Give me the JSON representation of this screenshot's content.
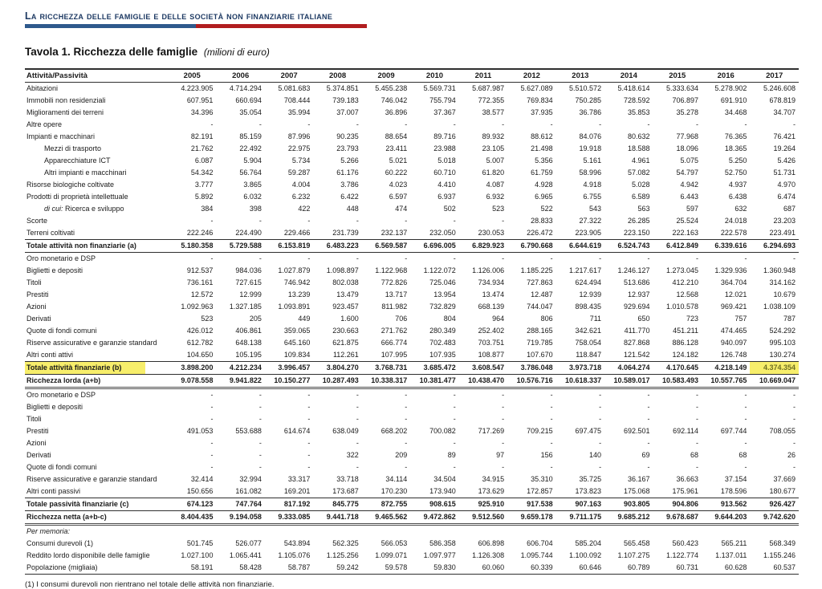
{
  "colors": {
    "title_navy": "#1e3a63",
    "bar_blue": "#2e598c",
    "bar_red": "#b11d1f",
    "highlight_yellow": "#f7ee6b",
    "highlight_text": "#6f6f23"
  },
  "page_header": {
    "title": "La ricchezza delle famiglie e delle società non finanziarie italiane"
  },
  "table_title": {
    "main": "Tavola 1. Ricchezza delle famiglie",
    "unit": "(milioni di euro)"
  },
  "table": {
    "header": {
      "label": "Attività/Passività",
      "years": [
        "2005",
        "2006",
        "2007",
        "2008",
        "2009",
        "2010",
        "2011",
        "2012",
        "2013",
        "2014",
        "2015",
        "2016",
        "2017"
      ]
    },
    "rows": [
      {
        "label": "Abitazioni",
        "style": "normal",
        "values": [
          "4.223.905",
          "4.714.294",
          "5.081.683",
          "5.374.851",
          "5.455.238",
          "5.569.731",
          "5.687.987",
          "5.627.089",
          "5.510.572",
          "5.418.614",
          "5.333.634",
          "5.278.902",
          "5.246.608"
        ]
      },
      {
        "label": "Immobili non residenziali",
        "style": "normal",
        "values": [
          "607.951",
          "660.694",
          "708.444",
          "739.183",
          "746.042",
          "755.794",
          "772.355",
          "769.834",
          "750.285",
          "728.592",
          "706.897",
          "691.910",
          "678.819"
        ]
      },
      {
        "label": "Miglioramenti dei terreni",
        "style": "normal",
        "values": [
          "34.396",
          "35.054",
          "35.994",
          "37.007",
          "36.896",
          "37.367",
          "38.577",
          "37.935",
          "36.786",
          "35.853",
          "35.278",
          "34.468",
          "34.707"
        ]
      },
      {
        "label": "Altre opere",
        "style": "normal",
        "values": [
          "-",
          "-",
          "-",
          "-",
          "-",
          "-",
          "-",
          "-",
          "-",
          "-",
          "-",
          "-",
          "-"
        ]
      },
      {
        "label": "Impianti e macchinari",
        "style": "normal",
        "values": [
          "82.191",
          "85.159",
          "87.996",
          "90.235",
          "88.654",
          "89.716",
          "89.932",
          "88.612",
          "84.076",
          "80.632",
          "77.968",
          "76.365",
          "76.421"
        ]
      },
      {
        "label": "Mezzi di trasporto",
        "style": "indent",
        "values": [
          "21.762",
          "22.492",
          "22.975",
          "23.793",
          "23.411",
          "23.988",
          "23.105",
          "21.498",
          "19.918",
          "18.588",
          "18.096",
          "18.365",
          "19.264"
        ]
      },
      {
        "label": "Apparecchiature ICT",
        "style": "indent",
        "values": [
          "6.087",
          "5.904",
          "5.734",
          "5.266",
          "5.021",
          "5.018",
          "5.007",
          "5.356",
          "5.161",
          "4.961",
          "5.075",
          "5.250",
          "5.426"
        ]
      },
      {
        "label": "Altri impianti e macchinari",
        "style": "indent",
        "values": [
          "54.342",
          "56.764",
          "59.287",
          "61.176",
          "60.222",
          "60.710",
          "61.820",
          "61.759",
          "58.996",
          "57.082",
          "54.797",
          "52.750",
          "51.731"
        ]
      },
      {
        "label": "Risorse biologiche coltivate",
        "style": "normal",
        "values": [
          "3.777",
          "3.865",
          "4.004",
          "3.786",
          "4.023",
          "4.410",
          "4.087",
          "4.928",
          "4.918",
          "5.028",
          "4.942",
          "4.937",
          "4.970"
        ]
      },
      {
        "label": "Prodotti di proprietà intellettuale",
        "style": "normal",
        "values": [
          "5.892",
          "6.032",
          "6.232",
          "6.422",
          "6.597",
          "6.937",
          "6.932",
          "6.965",
          "6.755",
          "6.589",
          "6.443",
          "6.438",
          "6.474"
        ]
      },
      {
        "label": "Ricerca e sviluppo",
        "italic_prefix": "di cui:",
        "style": "indent",
        "values": [
          "384",
          "398",
          "422",
          "448",
          "474",
          "502",
          "523",
          "522",
          "543",
          "563",
          "597",
          "632",
          "687"
        ]
      },
      {
        "label": "Scorte",
        "style": "normal",
        "values": [
          "-",
          "-",
          "-",
          "-",
          "-",
          "-",
          "-",
          "28.833",
          "27.322",
          "26.285",
          "25.524",
          "24.018",
          "23.203"
        ]
      },
      {
        "label": "Terreni coltivati",
        "style": "normal",
        "values": [
          "222.246",
          "224.490",
          "229.466",
          "231.739",
          "232.137",
          "232.050",
          "230.053",
          "226.472",
          "223.905",
          "223.150",
          "222.163",
          "222.578",
          "223.491"
        ]
      },
      {
        "label": "Totale attività non finanziarie (a)",
        "style": "total",
        "values": [
          "5.180.358",
          "5.729.588",
          "6.153.819",
          "6.483.223",
          "6.569.587",
          "6.696.005",
          "6.829.923",
          "6.790.668",
          "6.644.619",
          "6.524.743",
          "6.412.849",
          "6.339.616",
          "6.294.693"
        ]
      },
      {
        "label": "Oro monetario e DSP",
        "style": "normal",
        "values": [
          "-",
          "-",
          "-",
          "-",
          "-",
          "-",
          "-",
          "-",
          "-",
          "-",
          "-",
          "-",
          "-"
        ]
      },
      {
        "label": "Biglietti e depositi",
        "style": "normal",
        "values": [
          "912.537",
          "984.036",
          "1.027.879",
          "1.098.897",
          "1.122.968",
          "1.122.072",
          "1.126.006",
          "1.185.225",
          "1.217.617",
          "1.246.127",
          "1.273.045",
          "1.329.936",
          "1.360.948"
        ]
      },
      {
        "label": "Titoli",
        "style": "normal",
        "values": [
          "736.161",
          "727.615",
          "746.942",
          "802.038",
          "772.826",
          "725.046",
          "734.934",
          "727.863",
          "624.494",
          "513.686",
          "412.210",
          "364.704",
          "314.162"
        ]
      },
      {
        "label": "Prestiti",
        "style": "normal",
        "values": [
          "12.572",
          "12.999",
          "13.239",
          "13.479",
          "13.717",
          "13.954",
          "13.474",
          "12.487",
          "12.939",
          "12.937",
          "12.568",
          "12.021",
          "10.679"
        ]
      },
      {
        "label": "Azioni",
        "style": "normal",
        "values": [
          "1.092.963",
          "1.327.185",
          "1.093.891",
          "923.457",
          "811.982",
          "732.829",
          "668.139",
          "744.047",
          "898.435",
          "929.694",
          "1.010.578",
          "969.421",
          "1.038.109"
        ]
      },
      {
        "label": "Derivati",
        "style": "normal",
        "values": [
          "523",
          "205",
          "449",
          "1.600",
          "706",
          "804",
          "964",
          "806",
          "711",
          "650",
          "723",
          "757",
          "787"
        ]
      },
      {
        "label": "Quote di fondi comuni",
        "style": "normal",
        "values": [
          "426.012",
          "406.861",
          "359.065",
          "230.663",
          "271.762",
          "280.349",
          "252.402",
          "288.165",
          "342.621",
          "411.770",
          "451.211",
          "474.465",
          "524.292"
        ]
      },
      {
        "label": "Riserve assicurative e garanzie standard",
        "style": "normal",
        "values": [
          "612.782",
          "648.138",
          "645.160",
          "621.875",
          "666.774",
          "702.483",
          "703.751",
          "719.785",
          "758.054",
          "827.868",
          "886.128",
          "940.097",
          "995.103"
        ]
      },
      {
        "label": "Altri conti attivi",
        "style": "normal",
        "values": [
          "104.650",
          "105.195",
          "109.834",
          "112.261",
          "107.995",
          "107.935",
          "108.877",
          "107.670",
          "118.847",
          "121.542",
          "124.182",
          "126.748",
          "130.274"
        ]
      },
      {
        "label": "Totale attività finanziarie (b)",
        "style": "total",
        "highlight_label": true,
        "highlight_last": true,
        "values": [
          "3.898.200",
          "4.212.234",
          "3.996.457",
          "3.804.270",
          "3.768.731",
          "3.685.472",
          "3.608.547",
          "3.786.048",
          "3.973.718",
          "4.064.274",
          "4.170.645",
          "4.218.149",
          "4.374.354"
        ]
      },
      {
        "label": "Ricchezza lorda (a+b)",
        "style": "total",
        "rule": "double",
        "values": [
          "9.078.558",
          "9.941.822",
          "10.150.277",
          "10.287.493",
          "10.338.317",
          "10.381.477",
          "10.438.470",
          "10.576.716",
          "10.618.337",
          "10.589.017",
          "10.583.493",
          "10.557.765",
          "10.669.047"
        ]
      },
      {
        "label": "Oro monetario e DSP",
        "style": "normal",
        "values": [
          "-",
          "-",
          "-",
          "-",
          "-",
          "-",
          "-",
          "-",
          "-",
          "-",
          "-",
          "-",
          "-"
        ]
      },
      {
        "label": "Biglietti e depositi",
        "style": "normal",
        "values": [
          "-",
          "-",
          "-",
          "-",
          "-",
          "-",
          "-",
          "-",
          "-",
          "-",
          "-",
          "-",
          "-"
        ]
      },
      {
        "label": "Titoli",
        "style": "normal",
        "values": [
          "-",
          "-",
          "-",
          "-",
          "-",
          "-",
          "-",
          "-",
          "-",
          "-",
          "-",
          "-",
          "-"
        ]
      },
      {
        "label": "Prestiti",
        "style": "normal",
        "values": [
          "491.053",
          "553.688",
          "614.674",
          "638.049",
          "668.202",
          "700.082",
          "717.269",
          "709.215",
          "697.475",
          "692.501",
          "692.114",
          "697.744",
          "708.055"
        ]
      },
      {
        "label": "Azioni",
        "style": "normal",
        "values": [
          "-",
          "-",
          "-",
          "-",
          "-",
          "-",
          "-",
          "-",
          "-",
          "-",
          "-",
          "-",
          "-"
        ]
      },
      {
        "label": "Derivati",
        "style": "normal",
        "values": [
          "-",
          "-",
          "-",
          "322",
          "209",
          "89",
          "97",
          "156",
          "140",
          "69",
          "68",
          "68",
          "26"
        ]
      },
      {
        "label": "Quote di fondi comuni",
        "style": "normal",
        "values": [
          "-",
          "-",
          "-",
          "-",
          "-",
          "-",
          "-",
          "-",
          "-",
          "-",
          "-",
          "-",
          "-"
        ]
      },
      {
        "label": "Riserve assicurative e garanzie standard",
        "style": "normal",
        "values": [
          "32.414",
          "32.994",
          "33.317",
          "33.718",
          "34.114",
          "34.504",
          "34.915",
          "35.310",
          "35.725",
          "36.167",
          "36.663",
          "37.154",
          "37.669"
        ]
      },
      {
        "label": "Altri conti passivi",
        "style": "normal",
        "values": [
          "150.656",
          "161.082",
          "169.201",
          "173.687",
          "170.230",
          "173.940",
          "173.629",
          "172.857",
          "173.823",
          "175.068",
          "175.961",
          "178.596",
          "180.677"
        ]
      },
      {
        "label": "Totale passività finanziarie (c)",
        "style": "total",
        "values": [
          "674.123",
          "747.764",
          "817.192",
          "845.775",
          "872.755",
          "908.615",
          "925.910",
          "917.538",
          "907.163",
          "903.805",
          "904.806",
          "913.562",
          "926.427"
        ]
      },
      {
        "label": "Ricchezza netta (a+b-c)",
        "style": "total",
        "rule": "double",
        "values": [
          "8.404.435",
          "9.194.058",
          "9.333.085",
          "9.441.718",
          "9.465.562",
          "9.472.862",
          "9.512.560",
          "9.659.178",
          "9.711.175",
          "9.685.212",
          "9.678.687",
          "9.644.203",
          "9.742.620"
        ]
      },
      {
        "label": "Per memoria:",
        "style": "italic-label",
        "values": [
          "",
          "",
          "",
          "",
          "",
          "",
          "",
          "",
          "",
          "",
          "",
          "",
          ""
        ]
      },
      {
        "label": "Consumi durevoli (1)",
        "style": "normal",
        "values": [
          "501.745",
          "526.077",
          "543.894",
          "562.325",
          "566.053",
          "586.358",
          "606.898",
          "606.704",
          "585.204",
          "565.458",
          "560.423",
          "565.211",
          "568.349"
        ]
      },
      {
        "label": "Reddito lordo disponibile delle famiglie",
        "style": "normal",
        "values": [
          "1.027.100",
          "1.065.441",
          "1.105.076",
          "1.125.256",
          "1.099.071",
          "1.097.977",
          "1.126.308",
          "1.095.744",
          "1.100.092",
          "1.107.275",
          "1.122.774",
          "1.137.011",
          "1.155.246"
        ]
      },
      {
        "label": "Popolazione (migliaia)",
        "style": "normal",
        "last": true,
        "values": [
          "58.191",
          "58.428",
          "58.787",
          "59.242",
          "59.578",
          "59.830",
          "60.060",
          "60.339",
          "60.646",
          "60.789",
          "60.731",
          "60.628",
          "60.537"
        ]
      }
    ],
    "footnote": "(1) I consumi durevoli non rientrano nel totale delle attività non finanziarie."
  }
}
